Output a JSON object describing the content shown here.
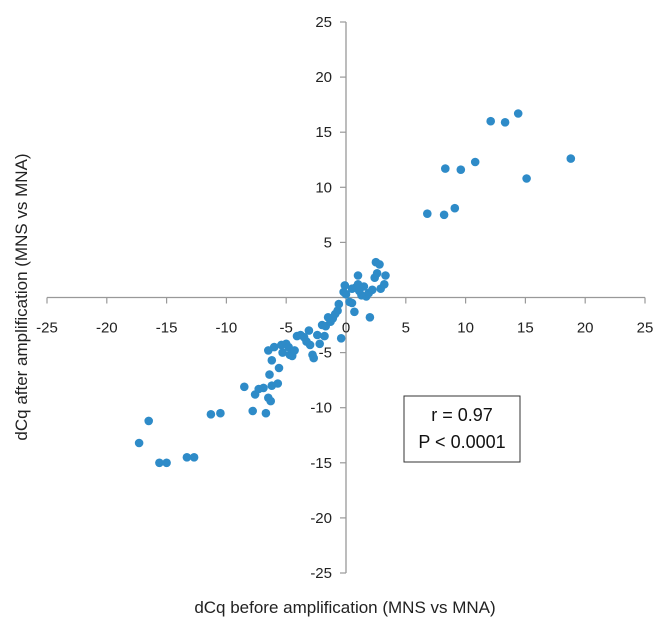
{
  "chart_data": {
    "type": "scatter",
    "title": "",
    "xlabel": "dCq before amplification (MNS vs MNA)",
    "ylabel": "dCq  after amplification (MNS  vs MNA)",
    "xlim": [
      -25,
      25
    ],
    "ylim": [
      -25,
      25
    ],
    "xticks": [
      "-25",
      "-20",
      "-15",
      "-10",
      "-5",
      "0",
      "5",
      "10",
      "15",
      "20",
      "25"
    ],
    "yticks": [
      "25",
      "20",
      "15",
      "10",
      "5",
      "0",
      "-5",
      "-10",
      "-15",
      "-20",
      "-25"
    ],
    "grid": false,
    "legend": "none",
    "colors": {
      "point": "#2E8BC8",
      "axis": "#999999",
      "text": "#222222"
    },
    "annotation": {
      "line1": "r = 0.97",
      "line2": "P < 0.0001"
    },
    "points": [
      [
        -17.3,
        -13.2
      ],
      [
        -16.5,
        -11.2
      ],
      [
        -15.6,
        -15.0
      ],
      [
        -15.0,
        -15.0
      ],
      [
        -13.3,
        -14.5
      ],
      [
        -12.7,
        -14.5
      ],
      [
        -11.3,
        -10.6
      ],
      [
        -10.5,
        -10.5
      ],
      [
        -8.5,
        -8.1
      ],
      [
        -7.8,
        -10.3
      ],
      [
        -7.6,
        -8.8
      ],
      [
        -7.3,
        -8.3
      ],
      [
        -6.9,
        -8.2
      ],
      [
        -6.7,
        -10.5
      ],
      [
        -6.5,
        -9.1
      ],
      [
        -6.3,
        -9.4
      ],
      [
        -6.4,
        -7.0
      ],
      [
        -6.2,
        -8.0
      ],
      [
        -6.2,
        -5.7
      ],
      [
        -6.5,
        -4.8
      ],
      [
        -6.0,
        -4.5
      ],
      [
        -5.7,
        -7.8
      ],
      [
        -5.6,
        -6.4
      ],
      [
        -5.4,
        -4.3
      ],
      [
        -5.3,
        -5.0
      ],
      [
        -5.0,
        -4.2
      ],
      [
        -4.8,
        -4.5
      ],
      [
        -4.7,
        -5.2
      ],
      [
        -4.5,
        -5.3
      ],
      [
        -4.3,
        -4.8
      ],
      [
        -4.1,
        -3.5
      ],
      [
        -3.8,
        -3.4
      ],
      [
        -3.5,
        -3.6
      ],
      [
        -3.3,
        -4.0
      ],
      [
        -3.0,
        -4.3
      ],
      [
        -3.1,
        -3.0
      ],
      [
        -2.8,
        -5.2
      ],
      [
        -2.7,
        -5.5
      ],
      [
        -2.4,
        -3.4
      ],
      [
        -2.2,
        -4.2
      ],
      [
        -2.0,
        -2.5
      ],
      [
        -1.8,
        -3.5
      ],
      [
        -1.7,
        -2.6
      ],
      [
        -1.5,
        -1.8
      ],
      [
        -1.3,
        -2.2
      ],
      [
        -1.1,
        -1.9
      ],
      [
        -0.9,
        -1.5
      ],
      [
        -0.7,
        -1.2
      ],
      [
        -0.6,
        -0.6
      ],
      [
        -0.4,
        -3.7
      ],
      [
        -0.2,
        0.5
      ],
      [
        0.0,
        0.3
      ],
      [
        0.3,
        -0.4
      ],
      [
        0.5,
        0.8
      ],
      [
        0.7,
        -1.3
      ],
      [
        0.8,
        0.9
      ],
      [
        1.0,
        1.2
      ],
      [
        1.1,
        0.6
      ],
      [
        1.3,
        0.2
      ],
      [
        1.5,
        1.0
      ],
      [
        1.7,
        0.1
      ],
      [
        1.9,
        0.4
      ],
      [
        2.0,
        -1.8
      ],
      [
        2.2,
        0.7
      ],
      [
        2.4,
        1.8
      ],
      [
        2.5,
        3.2
      ],
      [
        2.6,
        2.2
      ],
      [
        2.8,
        3.0
      ],
      [
        2.9,
        0.8
      ],
      [
        3.2,
        1.2
      ],
      [
        3.3,
        2.0
      ],
      [
        1.0,
        2.0
      ],
      [
        0.5,
        -0.5
      ],
      [
        -0.1,
        1.1
      ],
      [
        6.8,
        7.6
      ],
      [
        8.2,
        7.5
      ],
      [
        8.3,
        11.7
      ],
      [
        9.1,
        8.1
      ],
      [
        9.6,
        11.6
      ],
      [
        10.8,
        12.3
      ],
      [
        12.1,
        16.0
      ],
      [
        13.3,
        15.9
      ],
      [
        14.4,
        16.7
      ],
      [
        15.1,
        10.8
      ],
      [
        18.8,
        12.6
      ]
    ]
  }
}
